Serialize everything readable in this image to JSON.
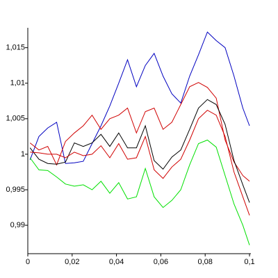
{
  "chart_data": {
    "type": "line",
    "x": [
      0.001,
      0.005,
      0.009,
      0.013,
      0.017,
      0.021,
      0.025,
      0.029,
      0.033,
      0.037,
      0.041,
      0.045,
      0.049,
      0.053,
      0.057,
      0.061,
      0.065,
      0.069,
      0.073,
      0.077,
      0.081,
      0.085,
      0.089,
      0.093,
      0.097,
      0.1
    ],
    "series": [
      {
        "color": "#0000c0",
        "values": [
          0.9992,
          1.0025,
          1.0037,
          1.0045,
          0.9987,
          0.9988,
          0.999,
          1.0015,
          1.004,
          1.0068,
          1.01,
          1.0133,
          1.0095,
          1.0125,
          1.0142,
          1.011,
          1.0085,
          1.0072,
          1.011,
          1.014,
          1.0172,
          1.016,
          1.015,
          1.011,
          1.0065,
          1.004
        ]
      },
      {
        "color": "#d00000",
        "values": [
          1.0016,
          1.0006,
          1.0011,
          0.9985,
          1.0018,
          1.003,
          1.004,
          1.0055,
          1.0035,
          1.005,
          1.0055,
          1.0065,
          1.003,
          1.006,
          1.0065,
          1.0035,
          1.0045,
          1.007,
          1.0095,
          1.0101,
          1.0094,
          1.0079,
          1.002,
          0.9989,
          0.997,
          0.9962
        ]
      },
      {
        "color": "#000000",
        "values": [
          1.0009,
          0.9993,
          0.9987,
          0.9986,
          0.9989,
          1.0016,
          1.0011,
          1.0016,
          1.0028,
          1.0011,
          1.003,
          1.0009,
          1.0009,
          1.004,
          0.9991,
          0.9979,
          0.9996,
          1.0006,
          1.0035,
          1.0065,
          1.0077,
          1.007,
          1.0042,
          0.9991,
          0.9957,
          0.9932
        ]
      },
      {
        "color": "#d00000",
        "values": [
          1.0003,
          1.0002,
          1.0,
          1.0,
          0.9995,
          1.0003,
          0.9998,
          1.0,
          1.0012,
          0.9995,
          1.0015,
          0.9993,
          0.9995,
          1.0025,
          0.9978,
          0.9966,
          0.9982,
          0.9993,
          1.002,
          1.005,
          1.0062,
          1.0055,
          1.0025,
          0.9975,
          0.994,
          0.9914
        ]
      },
      {
        "color": "#00e000",
        "values": [
          0.9995,
          0.9978,
          0.9977,
          0.9968,
          0.9958,
          0.9955,
          0.9957,
          0.995,
          0.9962,
          0.9945,
          0.996,
          0.9937,
          0.994,
          0.998,
          0.994,
          0.9925,
          0.9935,
          0.995,
          0.9985,
          1.0015,
          1.002,
          1.001,
          0.997,
          0.993,
          0.99,
          0.9872
        ]
      }
    ],
    "xlim": [
      0,
      0.1
    ],
    "xticks": [
      0,
      {
        "value": 0.02,
        "label": "0,02"
      },
      {
        "value": 0.04,
        "label": "0,04"
      },
      {
        "value": 0.06,
        "label": "0,06"
      },
      {
        "value": 0.08,
        "label": "0,08"
      },
      {
        "value": 0.1,
        "label": "0,1"
      }
    ],
    "ylim": [
      0.986,
      1.0178
    ],
    "yticks": [
      {
        "value": 0.99,
        "label": "0,99"
      },
      {
        "value": 0.995,
        "label": "0,995"
      },
      1,
      {
        "value": 1.005,
        "label": "1,005"
      },
      {
        "value": 1.01,
        "label": "1,01"
      },
      {
        "value": 1.015,
        "label": "1,015"
      }
    ],
    "grid": false
  }
}
